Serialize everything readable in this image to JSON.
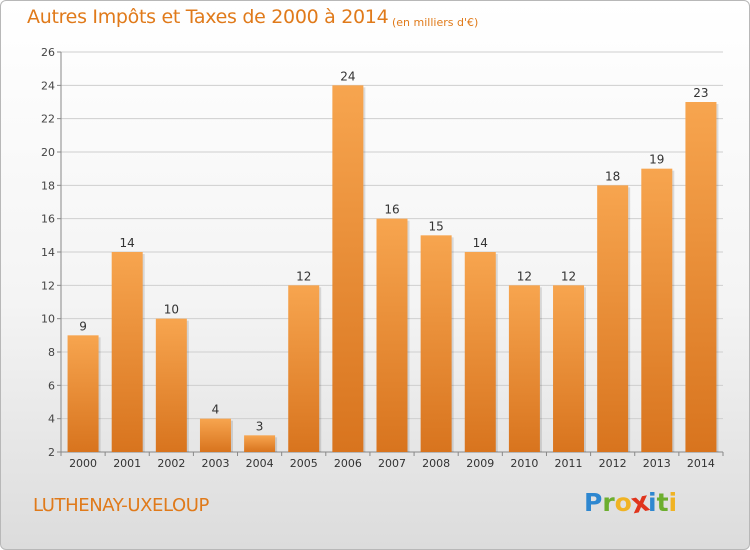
{
  "header": {
    "title": "Autres Impôts et Taxes de 2000 à 2014",
    "subtitle": "(en milliers d'€)"
  },
  "footer": {
    "commune": "LUTHENAY-UXELOUP",
    "logo_letters": [
      "P",
      "r",
      "o",
      "x",
      "i",
      "t",
      "i"
    ],
    "logo_colors": [
      "#2e87d0",
      "#6cae2e",
      "#f0b323",
      "#e0341c",
      "#2e87d0",
      "#6cae2e",
      "#f0b323"
    ]
  },
  "colors": {
    "bar_light": "#f7a54f",
    "bar_dark": "#d8741e",
    "grid": "#cfcfcf",
    "accent": "#e07a1a"
  },
  "chart_data": {
    "type": "bar",
    "categories": [
      "2000",
      "2001",
      "2002",
      "2003",
      "2004",
      "2005",
      "2006",
      "2007",
      "2008",
      "2009",
      "2010",
      "2011",
      "2012",
      "2013",
      "2014"
    ],
    "values": [
      9,
      14,
      10,
      4,
      3,
      12,
      24,
      16,
      15,
      14,
      12,
      12,
      18,
      19,
      23
    ],
    "title": "Autres Impôts et Taxes de 2000 à 2014",
    "subtitle": "(en milliers d'€)",
    "xlabel": "",
    "ylabel": "",
    "ylim": [
      2,
      26
    ],
    "yticks": [
      2,
      4,
      6,
      8,
      10,
      12,
      14,
      16,
      18,
      20,
      22,
      24,
      26
    ],
    "grid": true,
    "data_labels": true
  }
}
